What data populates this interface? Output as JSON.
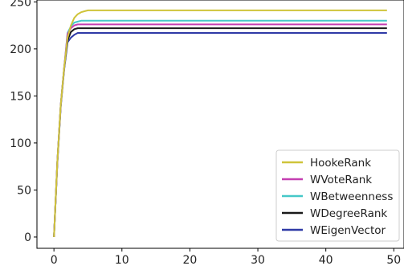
{
  "chart_data": {
    "type": "line",
    "x_ticks": [
      0,
      10,
      20,
      30,
      40,
      50
    ],
    "x_tick_labels": [
      "0",
      "10",
      "20",
      "30",
      "40",
      "50"
    ],
    "y_ticks": [
      0,
      50,
      100,
      150,
      200,
      250
    ],
    "y_tick_labels": [
      "0",
      "50",
      "100",
      "150",
      "200",
      "250"
    ],
    "xlim": [
      -2.5,
      51.5
    ],
    "ylim": [
      -12,
      252
    ],
    "grid": false,
    "legend_position": "bottom-right",
    "series": [
      {
        "name": "HookeRank",
        "color": "#cfc43a",
        "x": [
          0,
          0.5,
          1,
          1.5,
          2,
          2.5,
          3,
          3.5,
          4,
          4.5,
          5,
          6,
          7,
          8,
          10,
          15,
          20,
          30,
          40,
          49
        ],
        "y": [
          0,
          80,
          140,
          180,
          212,
          225,
          233,
          237,
          239,
          240,
          241,
          241,
          241,
          241,
          241,
          241,
          241,
          241,
          241,
          241
        ]
      },
      {
        "name": "WVoteRank",
        "color": "#c43fb1",
        "x": [
          0,
          0.5,
          1,
          1.5,
          2,
          2.5,
          3,
          3.5,
          4,
          5,
          6,
          8,
          10,
          15,
          20,
          30,
          40,
          49
        ],
        "y": [
          0,
          80,
          140,
          180,
          216,
          222,
          225,
          226,
          226,
          226,
          226,
          226,
          226,
          226,
          226,
          226,
          226,
          226
        ]
      },
      {
        "name": "WBetweenness",
        "color": "#45c8c8",
        "x": [
          0,
          0.5,
          1,
          1.5,
          2,
          2.5,
          3,
          3.5,
          4,
          5,
          6,
          8,
          10,
          15,
          20,
          30,
          40,
          49
        ],
        "y": [
          0,
          80,
          140,
          180,
          217,
          224,
          228,
          229,
          230,
          230,
          230,
          230,
          230,
          230,
          230,
          230,
          230,
          230
        ]
      },
      {
        "name": "WDegreeRank",
        "color": "#1a1a1a",
        "x": [
          0,
          0.5,
          1,
          1.5,
          2,
          2.5,
          3,
          3.5,
          4,
          5,
          6,
          8,
          10,
          15,
          20,
          30,
          40,
          49
        ],
        "y": [
          0,
          80,
          140,
          180,
          209,
          218,
          221,
          222,
          222,
          222,
          222,
          222,
          222,
          222,
          222,
          222,
          222,
          222
        ]
      },
      {
        "name": "WEigenVector",
        "color": "#2f3aa6",
        "x": [
          0,
          0.5,
          1,
          1.5,
          2,
          2.5,
          3,
          3.5,
          4,
          5,
          6,
          8,
          10,
          15,
          20,
          30,
          40,
          49
        ],
        "y": [
          0,
          78,
          138,
          178,
          207,
          212,
          215,
          217,
          217,
          217,
          217,
          217,
          217,
          217,
          217,
          217,
          217,
          217
        ]
      }
    ]
  }
}
